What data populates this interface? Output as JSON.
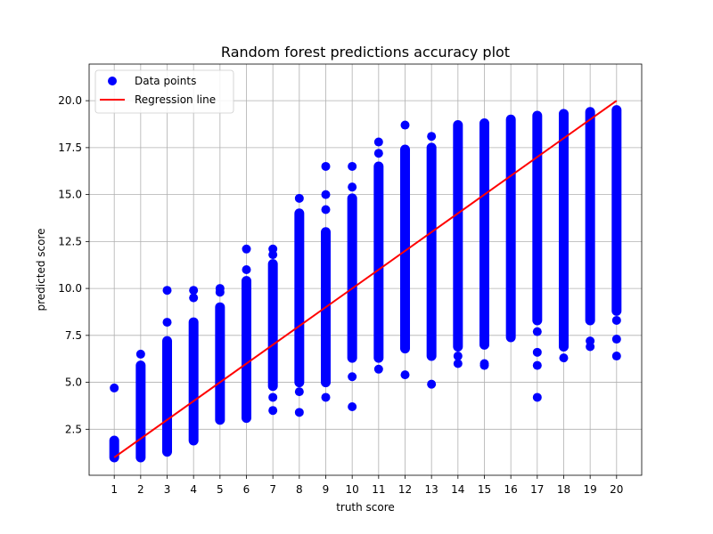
{
  "chart_data": {
    "type": "scatter",
    "title": "Random forest predictions accuracy plot",
    "xlabel": "truth score",
    "ylabel": "predicted score",
    "x_ticks": [
      1,
      2,
      3,
      4,
      5,
      6,
      7,
      8,
      9,
      10,
      11,
      12,
      13,
      14,
      15,
      16,
      17,
      18,
      19,
      20
    ],
    "y_ticks": [
      2.5,
      5.0,
      7.5,
      10.0,
      12.5,
      15.0,
      17.5,
      20.0
    ],
    "y_tick_labels": [
      "2.5",
      "5.0",
      "7.5",
      "10.0",
      "12.5",
      "15.0",
      "17.5",
      "20.0"
    ],
    "xlim": [
      0.05,
      20.95
    ],
    "ylim": [
      0.05,
      21.95
    ],
    "grid": true,
    "legend_position": "top-left",
    "series": [
      {
        "name": "Data points",
        "kind": "scatter",
        "color": "#0000ff",
        "columns": [
          {
            "x": 1,
            "min": 1.0,
            "max": 1.9,
            "outliers": [
              4.7
            ]
          },
          {
            "x": 2,
            "min": 1.0,
            "max": 5.9,
            "outliers": [
              6.5
            ]
          },
          {
            "x": 3,
            "min": 1.3,
            "max": 7.2,
            "outliers": [
              8.2,
              9.9
            ]
          },
          {
            "x": 4,
            "min": 1.9,
            "max": 8.2,
            "outliers": [
              9.5,
              9.9
            ]
          },
          {
            "x": 5,
            "min": 3.0,
            "max": 9.0,
            "outliers": [
              9.8,
              10.0
            ]
          },
          {
            "x": 6,
            "min": 3.1,
            "max": 10.4,
            "outliers": [
              11.0,
              12.1
            ]
          },
          {
            "x": 7,
            "min": 4.8,
            "max": 11.3,
            "outliers": [
              3.5,
              4.2,
              11.8,
              12.1
            ]
          },
          {
            "x": 8,
            "min": 5.0,
            "max": 14.0,
            "outliers": [
              3.4,
              4.5,
              14.8
            ]
          },
          {
            "x": 9,
            "min": 5.0,
            "max": 13.0,
            "outliers": [
              4.2,
              14.2,
              15.0,
              16.5
            ]
          },
          {
            "x": 10,
            "min": 6.3,
            "max": 14.8,
            "outliers": [
              3.7,
              5.3,
              15.4,
              16.5
            ]
          },
          {
            "x": 11,
            "min": 6.3,
            "max": 16.5,
            "outliers": [
              5.7,
              17.2,
              17.8
            ]
          },
          {
            "x": 12,
            "min": 6.8,
            "max": 17.4,
            "outliers": [
              5.4,
              18.7
            ]
          },
          {
            "x": 13,
            "min": 6.4,
            "max": 17.5,
            "outliers": [
              4.9,
              18.1
            ]
          },
          {
            "x": 14,
            "min": 6.9,
            "max": 18.7,
            "outliers": [
              6.0,
              6.4
            ]
          },
          {
            "x": 15,
            "min": 7.0,
            "max": 18.8,
            "outliers": [
              5.9,
              6.0
            ]
          },
          {
            "x": 16,
            "min": 7.4,
            "max": 19.0,
            "outliers": []
          },
          {
            "x": 17,
            "min": 8.3,
            "max": 19.2,
            "outliers": [
              4.2,
              5.9,
              6.6,
              7.7
            ]
          },
          {
            "x": 18,
            "min": 6.9,
            "max": 19.3,
            "outliers": [
              6.3,
              8.0
            ]
          },
          {
            "x": 19,
            "min": 8.3,
            "max": 19.4,
            "outliers": [
              6.9,
              7.2,
              9.4
            ]
          },
          {
            "x": 20,
            "min": 8.8,
            "max": 19.5,
            "outliers": [
              6.4,
              7.3,
              8.3
            ]
          }
        ]
      },
      {
        "name": "Regression line",
        "kind": "line",
        "color": "#ff0000",
        "x": [
          1,
          20
        ],
        "y": [
          1.0,
          20.0
        ]
      }
    ]
  }
}
